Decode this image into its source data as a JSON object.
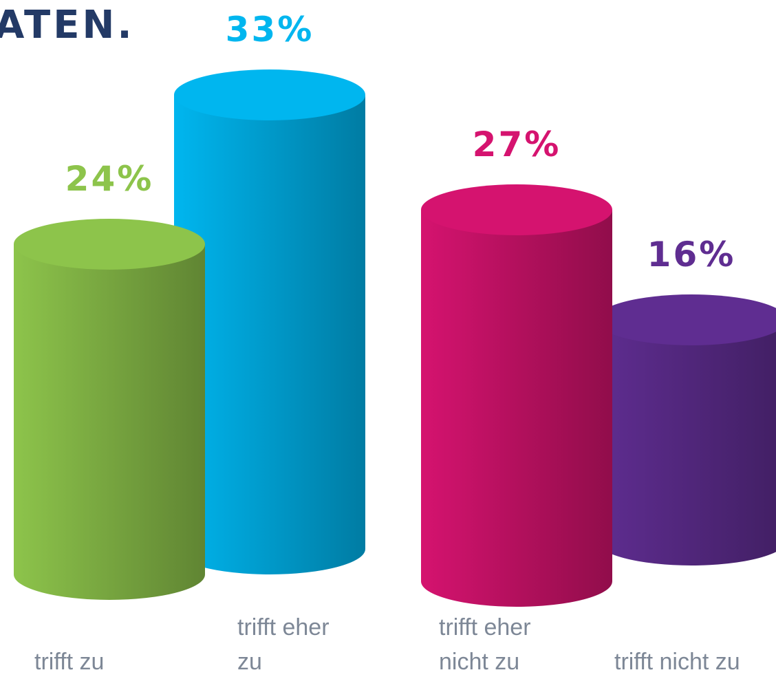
{
  "chart_data": {
    "type": "bar",
    "title": "ATEN.",
    "categories": [
      "trifft zu",
      "trifft eher zu",
      "trifft eher nicht zu",
      "trifft nicht zu"
    ],
    "values": [
      24,
      33,
      27,
      16
    ],
    "value_labels": [
      "24%",
      "33%",
      "27%",
      "16%"
    ],
    "colors": [
      "#8dc44b",
      "#00b6ef",
      "#d5136f",
      "#5f2d91"
    ]
  }
}
